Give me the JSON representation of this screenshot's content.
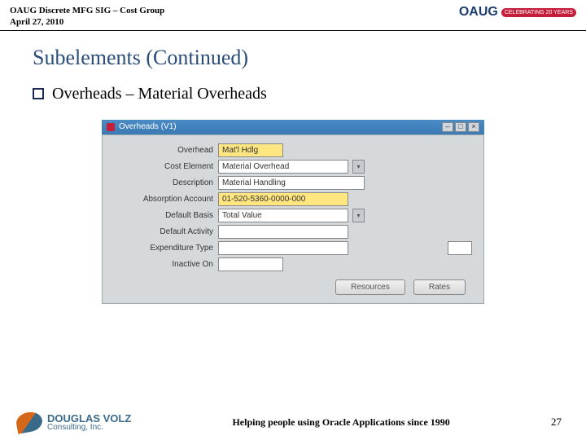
{
  "header": {
    "line1": "OAUG Discrete MFG SIG – Cost Group",
    "line2": "April 27, 2010",
    "logo_text": "OAUG",
    "logo_badge": "CELEBRATING 20 YEARS"
  },
  "title": "Subelements (Continued)",
  "bullet": "Overheads – Material Overheads",
  "window": {
    "title": "Overheads (V1)",
    "controls": {
      "min": "–",
      "max": "□",
      "close": "×"
    },
    "fields": {
      "overhead": {
        "label": "Overhead",
        "value": "Mat'l Hdlg"
      },
      "cost_element": {
        "label": "Cost Element",
        "value": "Material Overhead"
      },
      "description": {
        "label": "Description",
        "value": "Material Handling"
      },
      "absorption": {
        "label": "Absorption Account",
        "value": "01-520-5360-0000-000"
      },
      "default_basis": {
        "label": "Default Basis",
        "value": "Total Value"
      },
      "default_activity": {
        "label": "Default Activity",
        "value": ""
      },
      "expenditure_type": {
        "label": "Expenditure Type",
        "value": ""
      },
      "inactive_on": {
        "label": "Inactive On",
        "value": ""
      },
      "flex": ""
    },
    "buttons": {
      "resources": "Resources",
      "rates": "Rates"
    }
  },
  "footer": {
    "logo_main": "DOUGLAS VOLZ",
    "logo_sub": "Consulting, Inc.",
    "tagline": "Helping people using Oracle Applications since 1990",
    "page": "27"
  }
}
